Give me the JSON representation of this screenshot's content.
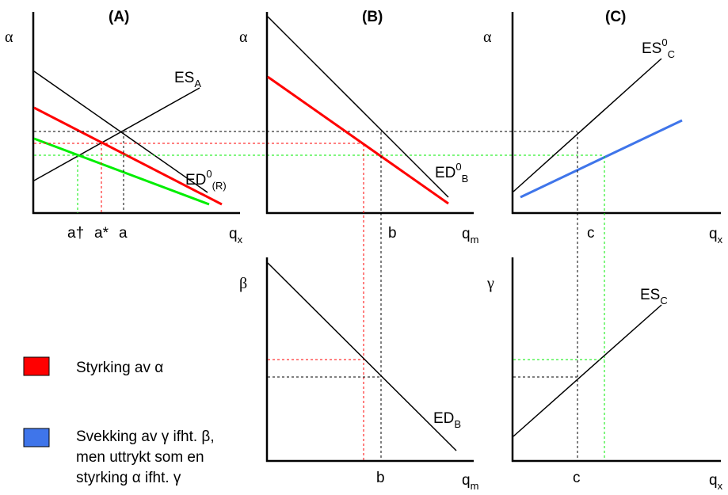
{
  "titles": {
    "A": "(A)",
    "B": "(B)",
    "C": "(C)"
  },
  "axes": {
    "alpha": "α",
    "beta": "β",
    "gamma": "γ",
    "q": "q",
    "x": "x",
    "m": "m"
  },
  "curves": {
    "es_a": {
      "main": "ES",
      "sub": "A"
    },
    "ed0_r": {
      "main": "ED",
      "sup": "0",
      "sub": "(R)"
    },
    "ed0_b": {
      "main": "ED",
      "sup": "0",
      "sub": "B"
    },
    "es0_c": {
      "main": "ES",
      "sup": "0",
      "sub": "C"
    },
    "es_c": {
      "main": "ES",
      "sub": "C"
    },
    "ed_b": {
      "main": "ED",
      "sub": "B"
    }
  },
  "ticks": {
    "a_dagger": "a†",
    "a_star": "a*",
    "a": "a",
    "b": "b",
    "c": "c"
  },
  "legend": {
    "items": [
      {
        "color": "#ff0000",
        "lines": [
          "Styrking av α"
        ]
      },
      {
        "color": "#3f75ea",
        "lines": [
          "Svekking av γ ifht. β,",
          "men uttrykt som en",
          "styrking α ifht. γ"
        ]
      }
    ]
  },
  "colors": {
    "red": "#ff0000",
    "green": "#00ee00",
    "blue": "#3f75ea",
    "black": "#000000"
  }
}
